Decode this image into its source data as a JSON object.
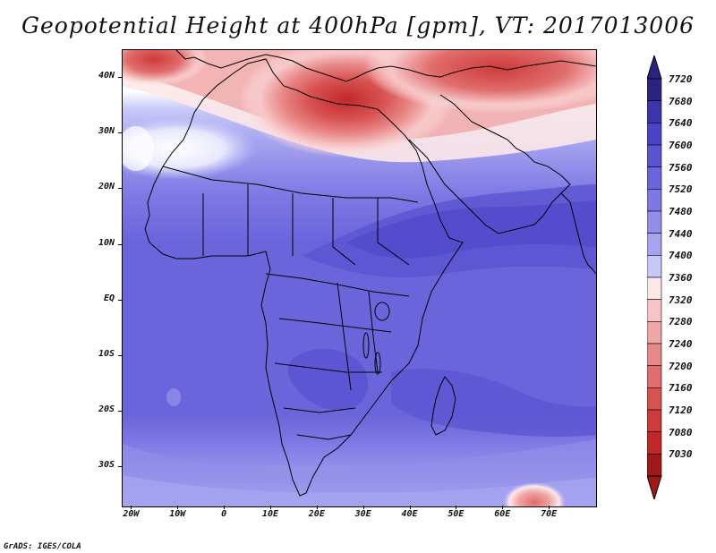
{
  "title": "Geopotential Height at 400hPa [gpm], VT: 2017013006",
  "footer": "GrADS: IGES/COLA",
  "map": {
    "y_ticks": [
      "40N",
      "30N",
      "20N",
      "10N",
      "EQ",
      "10S",
      "20S",
      "30S"
    ],
    "x_ticks": [
      "20W",
      "10W",
      "0",
      "10E",
      "20E",
      "30E",
      "40E",
      "50E",
      "60E",
      "70E"
    ]
  },
  "colorbar": {
    "labels": [
      "7720",
      "7680",
      "7640",
      "7600",
      "7560",
      "7520",
      "7480",
      "7440",
      "7400",
      "7360",
      "7320",
      "7280",
      "7240",
      "7200",
      "7160",
      "7120",
      "7080",
      "7030"
    ],
    "colors": [
      "#2b2380",
      "#3c34ad",
      "#4c44c8",
      "#5b54d2",
      "#6b65db",
      "#7d78e3",
      "#918dea",
      "#a6a4f0",
      "#c8c8f8",
      "#fde8e8",
      "#f7c5c5",
      "#f0a6a6",
      "#e88888",
      "#e06c6c",
      "#d85252",
      "#cf3a3a",
      "#c22828",
      "#a01818"
    ]
  },
  "chart_data": {
    "type": "heatmap",
    "title": "Geopotential Height at 400hPa [gpm], VT: 2017013006",
    "xlabel": "",
    "ylabel": "",
    "x_range_deg": [
      -22,
      80
    ],
    "y_range_deg": [
      -37,
      45
    ],
    "x_ticks": [
      "20W",
      "10W",
      "0",
      "10E",
      "20E",
      "30E",
      "40E",
      "50E",
      "60E",
      "70E"
    ],
    "y_ticks": [
      "40N",
      "30N",
      "20N",
      "10N",
      "EQ",
      "10S",
      "20S",
      "30S"
    ],
    "color_levels": [
      7030,
      7080,
      7120,
      7160,
      7200,
      7240,
      7280,
      7320,
      7360,
      7400,
      7440,
      7480,
      7520,
      7560,
      7600,
      7640,
      7680,
      7720
    ],
    "units": "gpm",
    "valid_time": "2017013006"
  }
}
